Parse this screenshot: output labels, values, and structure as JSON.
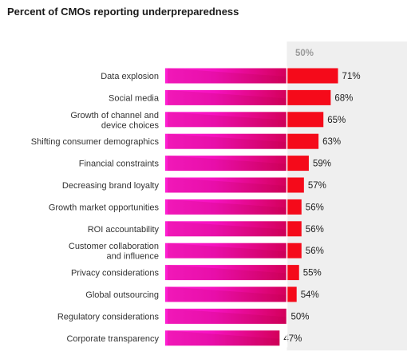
{
  "chart_data": {
    "type": "bar",
    "orientation": "horizontal",
    "title": "Percent of CMOs reporting underpreparedness",
    "reference_line": {
      "value": 50,
      "label": "50%"
    },
    "categories": [
      "Data explosion",
      "Social media",
      "Growth of channel and device choices",
      "Shifting consumer demographics",
      "Financial constraints",
      "Decreasing brand loyalty",
      "Growth market opportunities",
      "ROI accountability",
      "Customer collaboration and influence",
      "Privacy considerations",
      "Global outsourcing",
      "Regulatory considerations",
      "Corporate transparency"
    ],
    "category_lines": [
      [
        "Data explosion"
      ],
      [
        "Social media"
      ],
      [
        "Growth of channel and",
        "device choices"
      ],
      [
        "Shifting consumer demographics"
      ],
      [
        "Financial constraints"
      ],
      [
        "Decreasing brand loyalty"
      ],
      [
        "Growth market opportunities"
      ],
      [
        "ROI accountability"
      ],
      [
        "Customer collaboration",
        "and influence"
      ],
      [
        "Privacy considerations"
      ],
      [
        "Global outsourcing"
      ],
      [
        "Regulatory considerations"
      ],
      [
        "Corporate transparency"
      ]
    ],
    "values": [
      71,
      68,
      65,
      63,
      59,
      57,
      56,
      56,
      56,
      55,
      54,
      50,
      47
    ],
    "value_labels": [
      "71%",
      "68%",
      "65%",
      "63%",
      "59%",
      "57%",
      "56%",
      "56%",
      "56%",
      "55%",
      "54%",
      "50%",
      "47%"
    ],
    "xlabel": "",
    "ylabel": "",
    "xlim": [
      0,
      71
    ],
    "grid": false,
    "legend": "none",
    "colors": {
      "base_start": "#ff1fd2",
      "base_end": "#d4005a",
      "excess": "#f50a1a",
      "reference_band": "#efefef",
      "reference_line": "#ffffff"
    }
  }
}
